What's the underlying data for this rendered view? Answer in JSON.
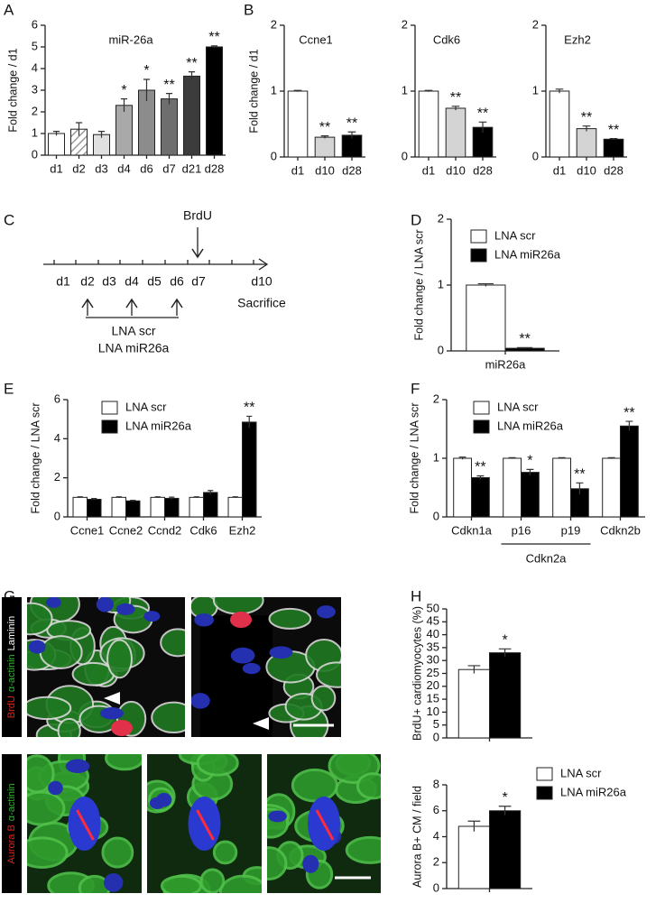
{
  "panels": [
    "A",
    "B",
    "C",
    "D",
    "E",
    "F",
    "G",
    "H"
  ],
  "timeline": {
    "days": [
      "d1",
      "d2",
      "d3",
      "d4",
      "d5",
      "d6",
      "d7",
      "d10"
    ],
    "day_colors": [
      "#111111",
      "#d8261e",
      "#111111",
      "#d8261e",
      "#111111",
      "#d8261e",
      "#111111",
      "#111111"
    ],
    "brdu": "BrdU",
    "sacrifice": "Sacrifice",
    "treatments": [
      "LNA scr",
      "LNA miR26a"
    ]
  },
  "images": {
    "row1_label": [
      {
        "text": "BrdU",
        "color": "#e0201b"
      },
      {
        "text": "α-actinin",
        "color": "#2fb52f"
      },
      {
        "text": "Laminin",
        "color": "#ffffff"
      }
    ],
    "row2_label": [
      {
        "text": "Aurora B",
        "color": "#e0201b"
      },
      {
        "text": "α-actinin",
        "color": "#2fb52f"
      }
    ]
  },
  "chart_data": [
    {
      "type": "bar",
      "title": "miR-26a",
      "ylabel": "Fold change / d1",
      "categories": [
        "d1",
        "d2",
        "d3",
        "d4",
        "d6",
        "d7",
        "d21",
        "d28"
      ],
      "values": [
        1.0,
        1.2,
        0.95,
        2.3,
        3.0,
        2.6,
        3.65,
        5.0
      ],
      "errors": [
        0.1,
        0.3,
        0.15,
        0.3,
        0.5,
        0.25,
        0.2,
        0.05
      ],
      "annotations": [
        null,
        null,
        null,
        "*",
        "*",
        "**",
        "**",
        "**"
      ],
      "colors": [
        "#ffffff",
        "#e6e6e6",
        "#e0e0e0",
        "#a9a9a9",
        "#8c8c8c",
        "#6e6e6e",
        "#3c3c3c",
        "#000000"
      ],
      "hatched": [
        false,
        true,
        false,
        false,
        false,
        false,
        false,
        false
      ],
      "ylim": [
        0,
        6
      ],
      "yticks": [
        0,
        1,
        2,
        3,
        4,
        5,
        6
      ]
    },
    {
      "type": "bar",
      "title": "Ccne1",
      "ylabel": "Fold change / d1",
      "categories": [
        "d1",
        "d10",
        "d28"
      ],
      "values": [
        1.0,
        0.3,
        0.33
      ],
      "errors": [
        0.01,
        0.02,
        0.05
      ],
      "annotations": [
        null,
        "**",
        "**"
      ],
      "colors": [
        "#ffffff",
        "#d4d4d4",
        "#000000"
      ],
      "ylim": [
        0,
        2
      ],
      "yticks": [
        0,
        1,
        2
      ]
    },
    {
      "type": "bar",
      "title": "Cdk6",
      "categories": [
        "d1",
        "d10",
        "d28"
      ],
      "values": [
        1.0,
        0.74,
        0.45
      ],
      "errors": [
        0.01,
        0.03,
        0.08
      ],
      "annotations": [
        null,
        "**",
        "**"
      ],
      "colors": [
        "#ffffff",
        "#d4d4d4",
        "#000000"
      ],
      "ylim": [
        0,
        2
      ],
      "yticks": [
        0,
        1,
        2
      ]
    },
    {
      "type": "bar",
      "title": "Ezh2",
      "categories": [
        "d1",
        "d10",
        "d28"
      ],
      "values": [
        1.0,
        0.43,
        0.27
      ],
      "errors": [
        0.03,
        0.04,
        0.01
      ],
      "annotations": [
        null,
        "**",
        "**"
      ],
      "colors": [
        "#ffffff",
        "#d4d4d4",
        "#000000"
      ],
      "ylim": [
        0,
        2
      ],
      "yticks": [
        0,
        1,
        2
      ]
    },
    {
      "type": "bar",
      "ylabel": "Fold change / LNA scr",
      "categories": [
        "miR26a"
      ],
      "series": [
        {
          "name": "LNA scr",
          "color": "#ffffff",
          "values": [
            1.0
          ],
          "errors": [
            0.02
          ],
          "annotations": [
            null
          ]
        },
        {
          "name": "LNA miR26a",
          "color": "#000000",
          "values": [
            0.04
          ],
          "errors": [
            0.01
          ],
          "annotations": [
            "**"
          ]
        }
      ],
      "ylim": [
        0,
        2
      ],
      "yticks": [
        0,
        1,
        2
      ]
    },
    {
      "type": "bar",
      "ylabel": "Fold change / LNA scr",
      "categories": [
        "Ccne1",
        "Ccne2",
        "Ccnd2",
        "Cdk6",
        "Ezh2"
      ],
      "series": [
        {
          "name": "LNA scr",
          "color": "#ffffff",
          "values": [
            1.0,
            1.0,
            1.0,
            1.0,
            1.0
          ],
          "errors": [
            0.03,
            0.03,
            0.03,
            0.03,
            0.03
          ],
          "annotations": [
            null,
            null,
            null,
            null,
            null
          ]
        },
        {
          "name": "LNA miR26a",
          "color": "#000000",
          "values": [
            0.9,
            0.82,
            0.95,
            1.25,
            4.85
          ],
          "errors": [
            0.04,
            0.03,
            0.06,
            0.1,
            0.3
          ],
          "annotations": [
            null,
            null,
            null,
            null,
            "**"
          ]
        }
      ],
      "ylim": [
        0,
        6
      ],
      "yticks": [
        0,
        2,
        4,
        6
      ]
    },
    {
      "type": "bar",
      "ylabel": "Fold change / LNA scr",
      "categories": [
        "Cdkn1a",
        "p16",
        "p19",
        "Cdkn2b"
      ],
      "groups": [
        {
          "label": "Cdkn2a",
          "categories": [
            1,
            2
          ]
        }
      ],
      "series": [
        {
          "name": "LNA scr",
          "color": "#ffffff",
          "values": [
            1.0,
            1.0,
            1.0,
            1.0
          ],
          "errors": [
            0.02,
            0.01,
            0.01,
            0.01
          ],
          "annotations": [
            null,
            null,
            null,
            null
          ]
        },
        {
          "name": "LNA miR26a",
          "color": "#000000",
          "values": [
            0.67,
            0.76,
            0.48,
            1.55
          ],
          "errors": [
            0.03,
            0.05,
            0.1,
            0.08
          ],
          "annotations": [
            "**",
            "*",
            "**",
            "**"
          ]
        }
      ],
      "ylim": [
        0,
        2
      ],
      "yticks": [
        0,
        1,
        2
      ]
    },
    {
      "type": "bar",
      "ylabel": "BrdU+ cardiomyocytes (%)",
      "categories": [
        null
      ],
      "series": [
        {
          "name": "LNA scr",
          "color": "#ffffff",
          "values": [
            26.5
          ],
          "errors": [
            1.5
          ],
          "annotations": [
            null
          ]
        },
        {
          "name": "LNA miR26a",
          "color": "#000000",
          "values": [
            33
          ],
          "errors": [
            1.5
          ],
          "annotations": [
            "*"
          ]
        }
      ],
      "ylim": [
        0,
        50
      ],
      "yticks": [
        0,
        5,
        10,
        15,
        20,
        25,
        30,
        35,
        40,
        45,
        50
      ]
    },
    {
      "type": "bar",
      "ylabel": "Aurora B+ CM / field",
      "categories": [
        null
      ],
      "series": [
        {
          "name": "LNA scr",
          "color": "#ffffff",
          "values": [
            4.8
          ],
          "errors": [
            0.4
          ],
          "annotations": [
            null
          ]
        },
        {
          "name": "LNA miR26a",
          "color": "#000000",
          "values": [
            6.0
          ],
          "errors": [
            0.35
          ],
          "annotations": [
            "*"
          ]
        }
      ],
      "ylim": [
        0,
        8
      ],
      "yticks": [
        0,
        2,
        4,
        6,
        8
      ]
    }
  ]
}
